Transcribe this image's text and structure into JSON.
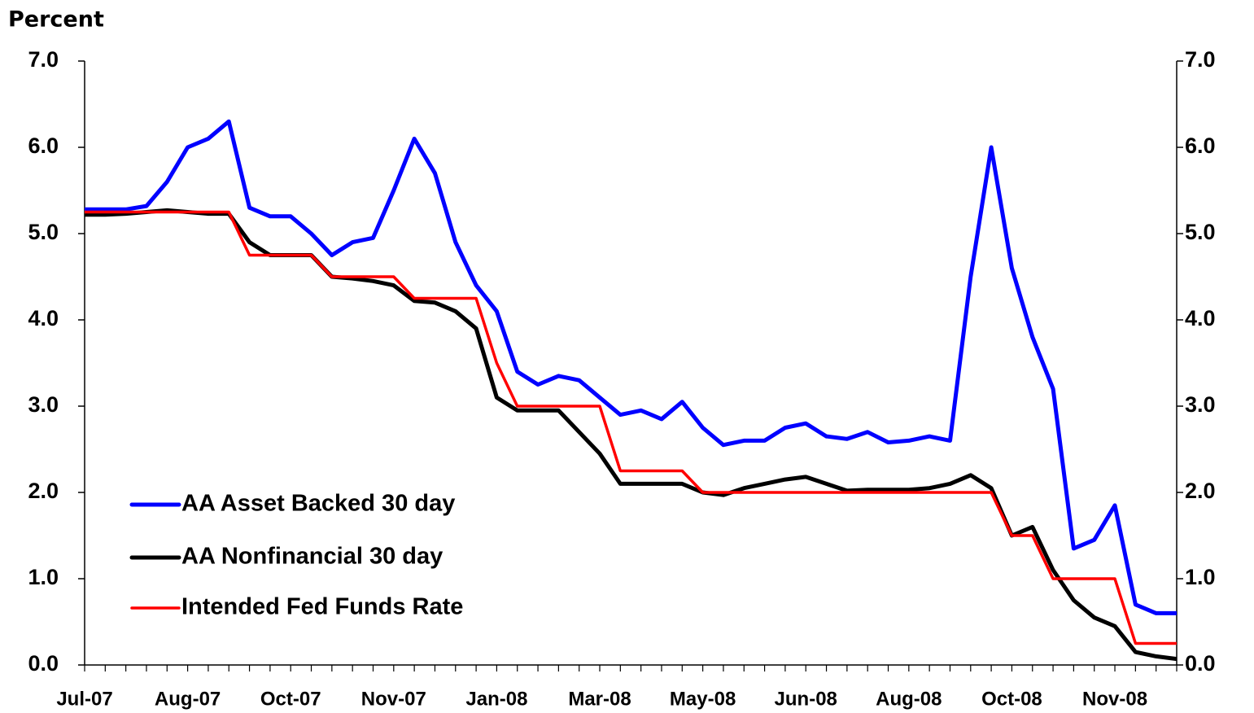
{
  "chart_data": {
    "type": "line",
    "y_axis_label": "Percent",
    "categories": [
      "Jul-07",
      null,
      null,
      null,
      null,
      "Aug-07",
      null,
      null,
      null,
      null,
      "Oct-07",
      null,
      null,
      null,
      null,
      "Nov-07",
      null,
      null,
      null,
      null,
      "Jan-08",
      null,
      null,
      null,
      null,
      "Mar-08",
      null,
      null,
      null,
      null,
      "May-08",
      null,
      null,
      null,
      null,
      "Jun-08",
      null,
      null,
      null,
      null,
      "Aug-08",
      null,
      null,
      null,
      null,
      "Oct-08",
      null,
      null,
      null,
      null,
      "Nov-08",
      null,
      null,
      null
    ],
    "series": [
      {
        "name": "AA Asset Backed 30 day",
        "color": "#0000ff",
        "values": [
          5.28,
          5.28,
          5.28,
          5.32,
          5.6,
          6.0,
          6.1,
          6.3,
          5.3,
          5.2,
          5.2,
          5.0,
          4.75,
          4.9,
          4.95,
          5.5,
          6.1,
          5.7,
          4.9,
          4.4,
          4.1,
          3.4,
          3.25,
          3.35,
          3.3,
          3.1,
          2.9,
          2.95,
          2.85,
          3.05,
          2.75,
          2.55,
          2.6,
          2.6,
          2.75,
          2.8,
          2.65,
          2.62,
          2.7,
          2.58,
          2.6,
          2.65,
          2.6,
          4.5,
          6.0,
          4.6,
          3.8,
          3.2,
          1.35,
          1.45,
          1.85,
          0.7,
          0.6,
          0.6
        ]
      },
      {
        "name": "AA Nonfinancial 30 day",
        "color": "#000000",
        "values": [
          5.22,
          5.22,
          5.23,
          5.25,
          5.27,
          5.25,
          5.23,
          5.23,
          4.9,
          4.75,
          4.75,
          4.75,
          4.5,
          4.48,
          4.45,
          4.4,
          4.22,
          4.2,
          4.1,
          3.9,
          3.1,
          2.95,
          2.95,
          2.95,
          2.7,
          2.45,
          2.1,
          2.1,
          2.1,
          2.1,
          2.0,
          1.97,
          2.05,
          2.1,
          2.15,
          2.18,
          2.1,
          2.02,
          2.03,
          2.03,
          2.03,
          2.05,
          2.1,
          2.2,
          2.05,
          1.5,
          1.6,
          1.1,
          0.75,
          0.55,
          0.45,
          0.15,
          0.1,
          0.07
        ]
      },
      {
        "name": "Intended Fed Funds Rate",
        "color": "#ff0000",
        "values": [
          5.25,
          5.25,
          5.25,
          5.25,
          5.25,
          5.25,
          5.25,
          5.25,
          4.75,
          4.75,
          4.75,
          4.75,
          4.5,
          4.5,
          4.5,
          4.5,
          4.25,
          4.25,
          4.25,
          4.25,
          3.5,
          3.0,
          3.0,
          3.0,
          3.0,
          3.0,
          2.25,
          2.25,
          2.25,
          2.25,
          2.0,
          2.0,
          2.0,
          2.0,
          2.0,
          2.0,
          2.0,
          2.0,
          2.0,
          2.0,
          2.0,
          2.0,
          2.0,
          2.0,
          2.0,
          1.5,
          1.5,
          1.0,
          1.0,
          1.0,
          1.0,
          0.25,
          0.25,
          0.25
        ]
      }
    ],
    "ylim": [
      0,
      7
    ],
    "yticks": [
      {
        "value": 0,
        "label": "0.0"
      },
      {
        "value": 1,
        "label": "1.0"
      },
      {
        "value": 2,
        "label": "2.0"
      },
      {
        "value": 3,
        "label": "3.0"
      },
      {
        "value": 4,
        "label": "4.0"
      },
      {
        "value": 5,
        "label": "5.0"
      },
      {
        "value": 6,
        "label": "6.0"
      },
      {
        "value": 7,
        "label": "7.0"
      }
    ],
    "y2lim": [
      0,
      7
    ],
    "y2ticks": [
      {
        "value": 0,
        "label": "0.0"
      },
      {
        "value": 1,
        "label": "1.0"
      },
      {
        "value": 2,
        "label": "2.0"
      },
      {
        "value": 3,
        "label": "3.0"
      },
      {
        "value": 4,
        "label": "4.0"
      },
      {
        "value": 5,
        "label": "5.0"
      },
      {
        "value": 6,
        "label": "6.0"
      },
      {
        "value": 7,
        "label": "7.0"
      }
    ],
    "grid": false,
    "legend": "lower left"
  }
}
